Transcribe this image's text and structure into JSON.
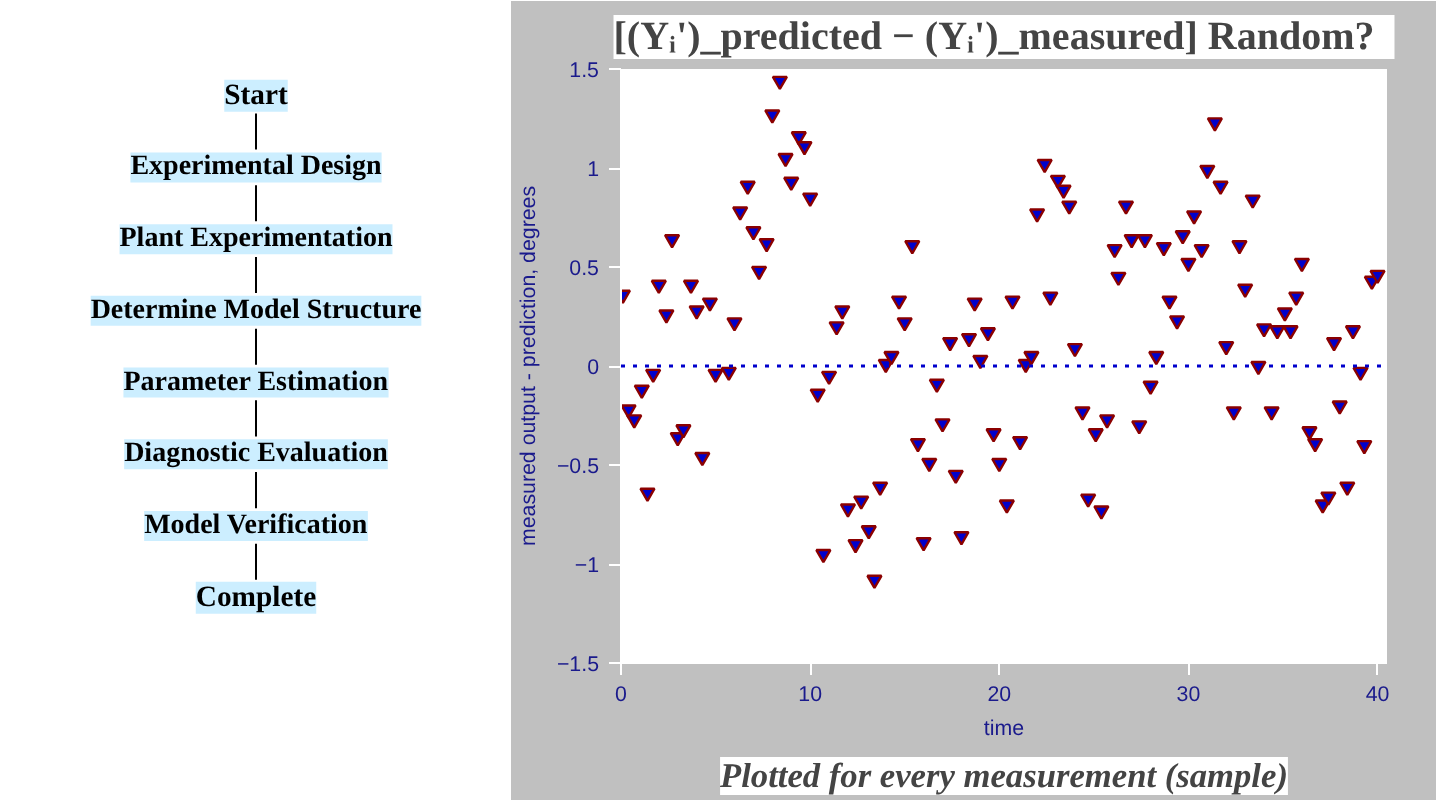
{
  "chart_data": [
    {
      "type": "other",
      "annotations": [
        "Start",
        "Experimental Design",
        "Plant Experimentation",
        "Determine Model Structure",
        "Parameter Estimation",
        "Diagnostic Evaluation",
        "Model Verification",
        "Complete"
      ]
    },
    {
      "type": "scatter",
      "title": "[(Yᵢ')_predicted − (Yᵢ')_measured]   Random?",
      "xlabel": "time",
      "ylabel": "measured output - prediction, degrees",
      "marker": "triangle",
      "grid": false,
      "xlim": [
        0,
        40.5
      ],
      "ylim": [
        -1.5,
        1.5
      ],
      "xticks": [
        0,
        10,
        20,
        30,
        40
      ],
      "yticks": [
        -1.5,
        -1,
        -0.5,
        0,
        0.5,
        1,
        1.5
      ],
      "ref_lines": [
        {
          "axis": "y",
          "value": 0,
          "color": "#0000cc",
          "line_style": "dotted"
        }
      ],
      "annotations": [
        "Plotted for every measurement (sample)"
      ],
      "series": [
        {
          "color": "#0000cc",
          "x": [
            0.1,
            0.4,
            0.7,
            1.1,
            1.4,
            1.7,
            2.0,
            2.4,
            2.7,
            3.0,
            3.3,
            3.7,
            4.0,
            4.3,
            4.7,
            5.0,
            5.7,
            6.0,
            6.3,
            6.7,
            7.0,
            7.3,
            7.7,
            8.0,
            8.4,
            8.7,
            9.0,
            9.4,
            9.7,
            10.0,
            10.4,
            10.7,
            11.0,
            11.4,
            11.7,
            12.0,
            12.4,
            12.7,
            13.1,
            13.4,
            13.7,
            14.0,
            14.3,
            14.7,
            15.0,
            15.4,
            15.7,
            16.0,
            16.3,
            16.7,
            17.0,
            17.4,
            17.7,
            18.0,
            18.4,
            18.7,
            19.0,
            19.4,
            19.7,
            20.0,
            20.4,
            20.7,
            21.1,
            21.4,
            21.7,
            22.0,
            22.4,
            22.7,
            23.1,
            23.4,
            23.7,
            24.0,
            24.4,
            24.7,
            25.1,
            25.4,
            25.7,
            26.1,
            26.3,
            26.7,
            27.0,
            27.4,
            27.7,
            28.0,
            28.3,
            28.7,
            29.0,
            29.4,
            29.7,
            30.0,
            30.3,
            30.7,
            31.0,
            31.4,
            31.7,
            32.0,
            32.4,
            32.7,
            33.0,
            33.4,
            33.7,
            34.0,
            34.4,
            34.7,
            35.1,
            35.4,
            35.7,
            36.0,
            36.4,
            36.7,
            37.1,
            37.4,
            37.7,
            38.0,
            38.4,
            38.7,
            39.1,
            39.3,
            39.7,
            40.0
          ],
          "values": [
            0.36,
            -0.22,
            -0.27,
            -0.12,
            -0.64,
            -0.04,
            0.41,
            0.26,
            0.64,
            -0.36,
            -0.32,
            0.41,
            0.28,
            -0.46,
            0.32,
            -0.04,
            -0.03,
            0.22,
            0.78,
            0.91,
            0.68,
            0.48,
            0.62,
            1.27,
            1.44,
            1.05,
            0.93,
            1.16,
            1.11,
            0.85,
            -0.14,
            -0.95,
            -0.05,
            0.2,
            0.28,
            -0.72,
            -0.9,
            -0.68,
            -0.83,
            -1.08,
            -0.61,
            0.01,
            0.05,
            0.33,
            0.22,
            0.61,
            -0.39,
            -0.89,
            -0.49,
            -0.09,
            -0.29,
            0.12,
            -0.55,
            -0.86,
            0.14,
            0.32,
            0.03,
            0.17,
            -0.34,
            -0.49,
            -0.7,
            0.33,
            -0.38,
            0.01,
            0.05,
            0.77,
            1.02,
            0.35,
            0.94,
            0.89,
            0.81,
            0.09,
            -0.23,
            -0.67,
            -0.34,
            -0.73,
            -0.27,
            0.59,
            0.45,
            0.81,
            0.64,
            -0.3,
            0.64,
            -0.1,
            0.05,
            0.6,
            0.33,
            0.23,
            0.66,
            0.52,
            0.76,
            0.59,
            0.99,
            1.23,
            0.91,
            0.1,
            -0.23,
            0.61,
            0.39,
            0.84,
            0.0,
            0.19,
            -0.23,
            0.18,
            0.27,
            0.18,
            0.35,
            0.52,
            -0.33,
            -0.39,
            -0.7,
            -0.66,
            0.12,
            -0.2,
            -0.61,
            0.18,
            -0.03,
            -0.4,
            0.43,
            0.46
          ]
        }
      ]
    }
  ]
}
